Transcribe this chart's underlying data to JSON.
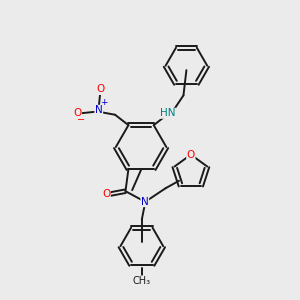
{
  "bg_color": "#ebebeb",
  "bond_color": "#1a1a1a",
  "atom_colors": {
    "O": "#ff0000",
    "N": "#0000cc",
    "H": "#008080",
    "C": "#1a1a1a"
  }
}
